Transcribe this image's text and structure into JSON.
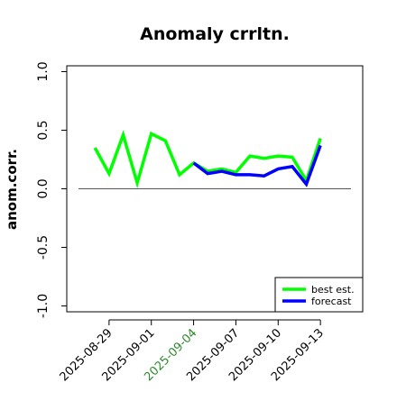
{
  "chart_data": {
    "type": "line",
    "title": "Anomaly crrltn.",
    "ylabel": "anom.corr.",
    "xlabel": "",
    "ylim": [
      -1.05,
      1.05
    ],
    "yticks": [
      {
        "value": 1.0,
        "label": "1.0"
      },
      {
        "value": 0.5,
        "label": "0.5"
      },
      {
        "value": 0.0,
        "label": "0.0"
      },
      {
        "value": -0.5,
        "label": "-0.5"
      },
      {
        "value": -1.0,
        "label": "-1.0"
      }
    ],
    "xlim": [
      "2025-08-26",
      "2025-09-16"
    ],
    "xticks": [
      {
        "date": "2025-08-29",
        "label": "2025-08-29",
        "highlight": false
      },
      {
        "date": "2025-09-01",
        "label": "2025-09-01",
        "highlight": false
      },
      {
        "date": "2025-09-04",
        "label": "2025-09-04",
        "highlight": true
      },
      {
        "date": "2025-09-07",
        "label": "2025-09-07",
        "highlight": false
      },
      {
        "date": "2025-09-10",
        "label": "2025-09-10",
        "highlight": false
      },
      {
        "date": "2025-09-13",
        "label": "2025-09-13",
        "highlight": false
      }
    ],
    "reference_line": 0,
    "legend_position": "bottom-right",
    "series": [
      {
        "name": "best est.",
        "color": "#00ff00",
        "x": [
          "2025-08-28",
          "2025-08-29",
          "2025-08-30",
          "2025-08-31",
          "2025-09-01",
          "2025-09-02",
          "2025-09-03",
          "2025-09-04",
          "2025-09-05",
          "2025-09-06",
          "2025-09-07",
          "2025-09-08",
          "2025-09-09",
          "2025-09-10",
          "2025-09-11",
          "2025-09-12",
          "2025-09-13"
        ],
        "values": [
          0.35,
          0.13,
          0.46,
          0.05,
          0.47,
          0.41,
          0.12,
          0.22,
          0.15,
          0.17,
          0.14,
          0.28,
          0.26,
          0.28,
          0.27,
          0.07,
          0.43
        ]
      },
      {
        "name": "forecast",
        "color": "#0000ff",
        "x": [
          "2025-09-04",
          "2025-09-05",
          "2025-09-06",
          "2025-09-07",
          "2025-09-08",
          "2025-09-09",
          "2025-09-10",
          "2025-09-11",
          "2025-09-12",
          "2025-09-13"
        ],
        "values": [
          0.22,
          0.13,
          0.15,
          0.12,
          0.12,
          0.11,
          0.17,
          0.19,
          0.04,
          0.37
        ]
      }
    ]
  }
}
